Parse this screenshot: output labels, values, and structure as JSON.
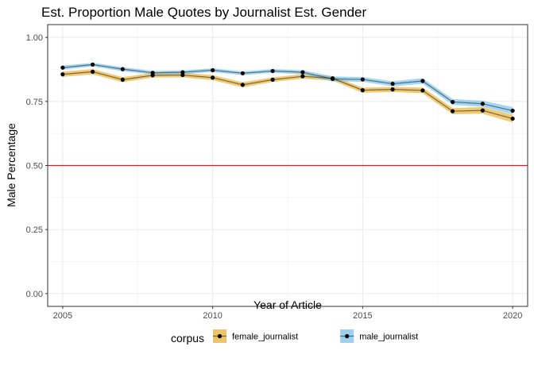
{
  "chart_data": {
    "type": "line",
    "title": "Est. Proportion Male Quotes by Journalist Est. Gender",
    "xlabel": "Year of Article",
    "ylabel": "Male Percentage",
    "xlim": [
      2004.5,
      2020.5
    ],
    "ylim": [
      -0.05,
      1.05
    ],
    "xticks": [
      2005,
      2010,
      2015,
      2020
    ],
    "xtick_labels": [
      "2005",
      "2010",
      "2015",
      "2020"
    ],
    "yticks": [
      0,
      0.25,
      0.5,
      0.75,
      1.0
    ],
    "ytick_labels": [
      "0.00",
      "0.25",
      "0.50",
      "0.75",
      "1.00"
    ],
    "grid": true,
    "reference_line": {
      "y": 0.5,
      "color": "#e31a1c"
    },
    "legend": {
      "title": "corpus",
      "position": "bottom"
    },
    "x": [
      2005,
      2006,
      2007,
      2008,
      2009,
      2010,
      2011,
      2012,
      2013,
      2014,
      2015,
      2016,
      2017,
      2018,
      2019,
      2020
    ],
    "series": [
      {
        "name": "female_journalist",
        "fill": "#e69f00",
        "values": [
          0.856,
          0.866,
          0.835,
          0.852,
          0.853,
          0.843,
          0.815,
          0.835,
          0.848,
          0.84,
          0.794,
          0.797,
          0.793,
          0.712,
          0.715,
          0.683
        ],
        "ci_low": [
          0.846,
          0.856,
          0.825,
          0.843,
          0.844,
          0.833,
          0.805,
          0.826,
          0.839,
          0.831,
          0.784,
          0.787,
          0.782,
          0.7,
          0.702,
          0.668
        ],
        "ci_high": [
          0.866,
          0.876,
          0.845,
          0.861,
          0.862,
          0.853,
          0.825,
          0.844,
          0.857,
          0.849,
          0.804,
          0.807,
          0.804,
          0.724,
          0.728,
          0.698
        ]
      },
      {
        "name": "male_journalist",
        "fill": "#56b4e9",
        "values": [
          0.882,
          0.894,
          0.876,
          0.862,
          0.864,
          0.872,
          0.86,
          0.869,
          0.864,
          0.838,
          0.836,
          0.819,
          0.83,
          0.748,
          0.741,
          0.714
        ],
        "ci_low": [
          0.874,
          0.887,
          0.868,
          0.855,
          0.857,
          0.865,
          0.853,
          0.862,
          0.856,
          0.828,
          0.827,
          0.809,
          0.819,
          0.737,
          0.729,
          0.7
        ],
        "ci_high": [
          0.89,
          0.901,
          0.884,
          0.869,
          0.871,
          0.879,
          0.867,
          0.876,
          0.872,
          0.848,
          0.845,
          0.829,
          0.841,
          0.759,
          0.753,
          0.728
        ]
      }
    ]
  }
}
